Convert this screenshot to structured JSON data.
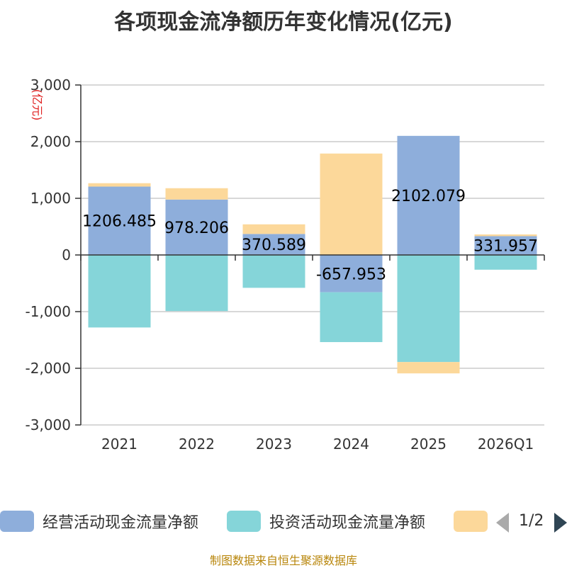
{
  "chart_data": {
    "type": "bar",
    "stacked": true,
    "title": "各项现金流净额历年变化情况(亿元)",
    "ylabel": "(亿元)",
    "categories": [
      "2021",
      "2022",
      "2023",
      "2024",
      "2025",
      "2026Q1"
    ],
    "ylim": [
      -3000,
      3000
    ],
    "yticks": [
      3000,
      2000,
      1000,
      0,
      -1000,
      -2000,
      -3000
    ],
    "ytick_labels": [
      "3,000",
      "2,000",
      "1,000",
      "0",
      "-1,000",
      "-2,000",
      "-3,000"
    ],
    "series": [
      {
        "name": "经营活动现金流量净额",
        "color": "#8eaedb",
        "values": [
          1206.485,
          978.206,
          370.589,
          -657.953,
          2102.079,
          331.957
        ]
      },
      {
        "name": "投资活动现金流量净额",
        "color": "#85d5d9",
        "values": [
          -1280,
          -990,
          -580,
          -880,
          -1890,
          -260
        ]
      },
      {
        "name": "",
        "color": "#fcd89a",
        "values": [
          60,
          200,
          170,
          1790,
          -200,
          30
        ]
      }
    ],
    "data_labels": [
      "1206.485",
      "978.206",
      "370.589",
      "-657.953",
      "2102.079",
      "331.957"
    ],
    "grid": true,
    "legend_position": "bottom"
  },
  "legend": {
    "items": [
      {
        "label": "经营活动现金流量净额",
        "color": "#8eaedb"
      },
      {
        "label": "投资活动现金流量净额",
        "color": "#85d5d9"
      },
      {
        "label": "",
        "color": "#fcd89a"
      }
    ],
    "page": "1/2"
  },
  "source_note": "制图数据来自恒生聚源数据库"
}
